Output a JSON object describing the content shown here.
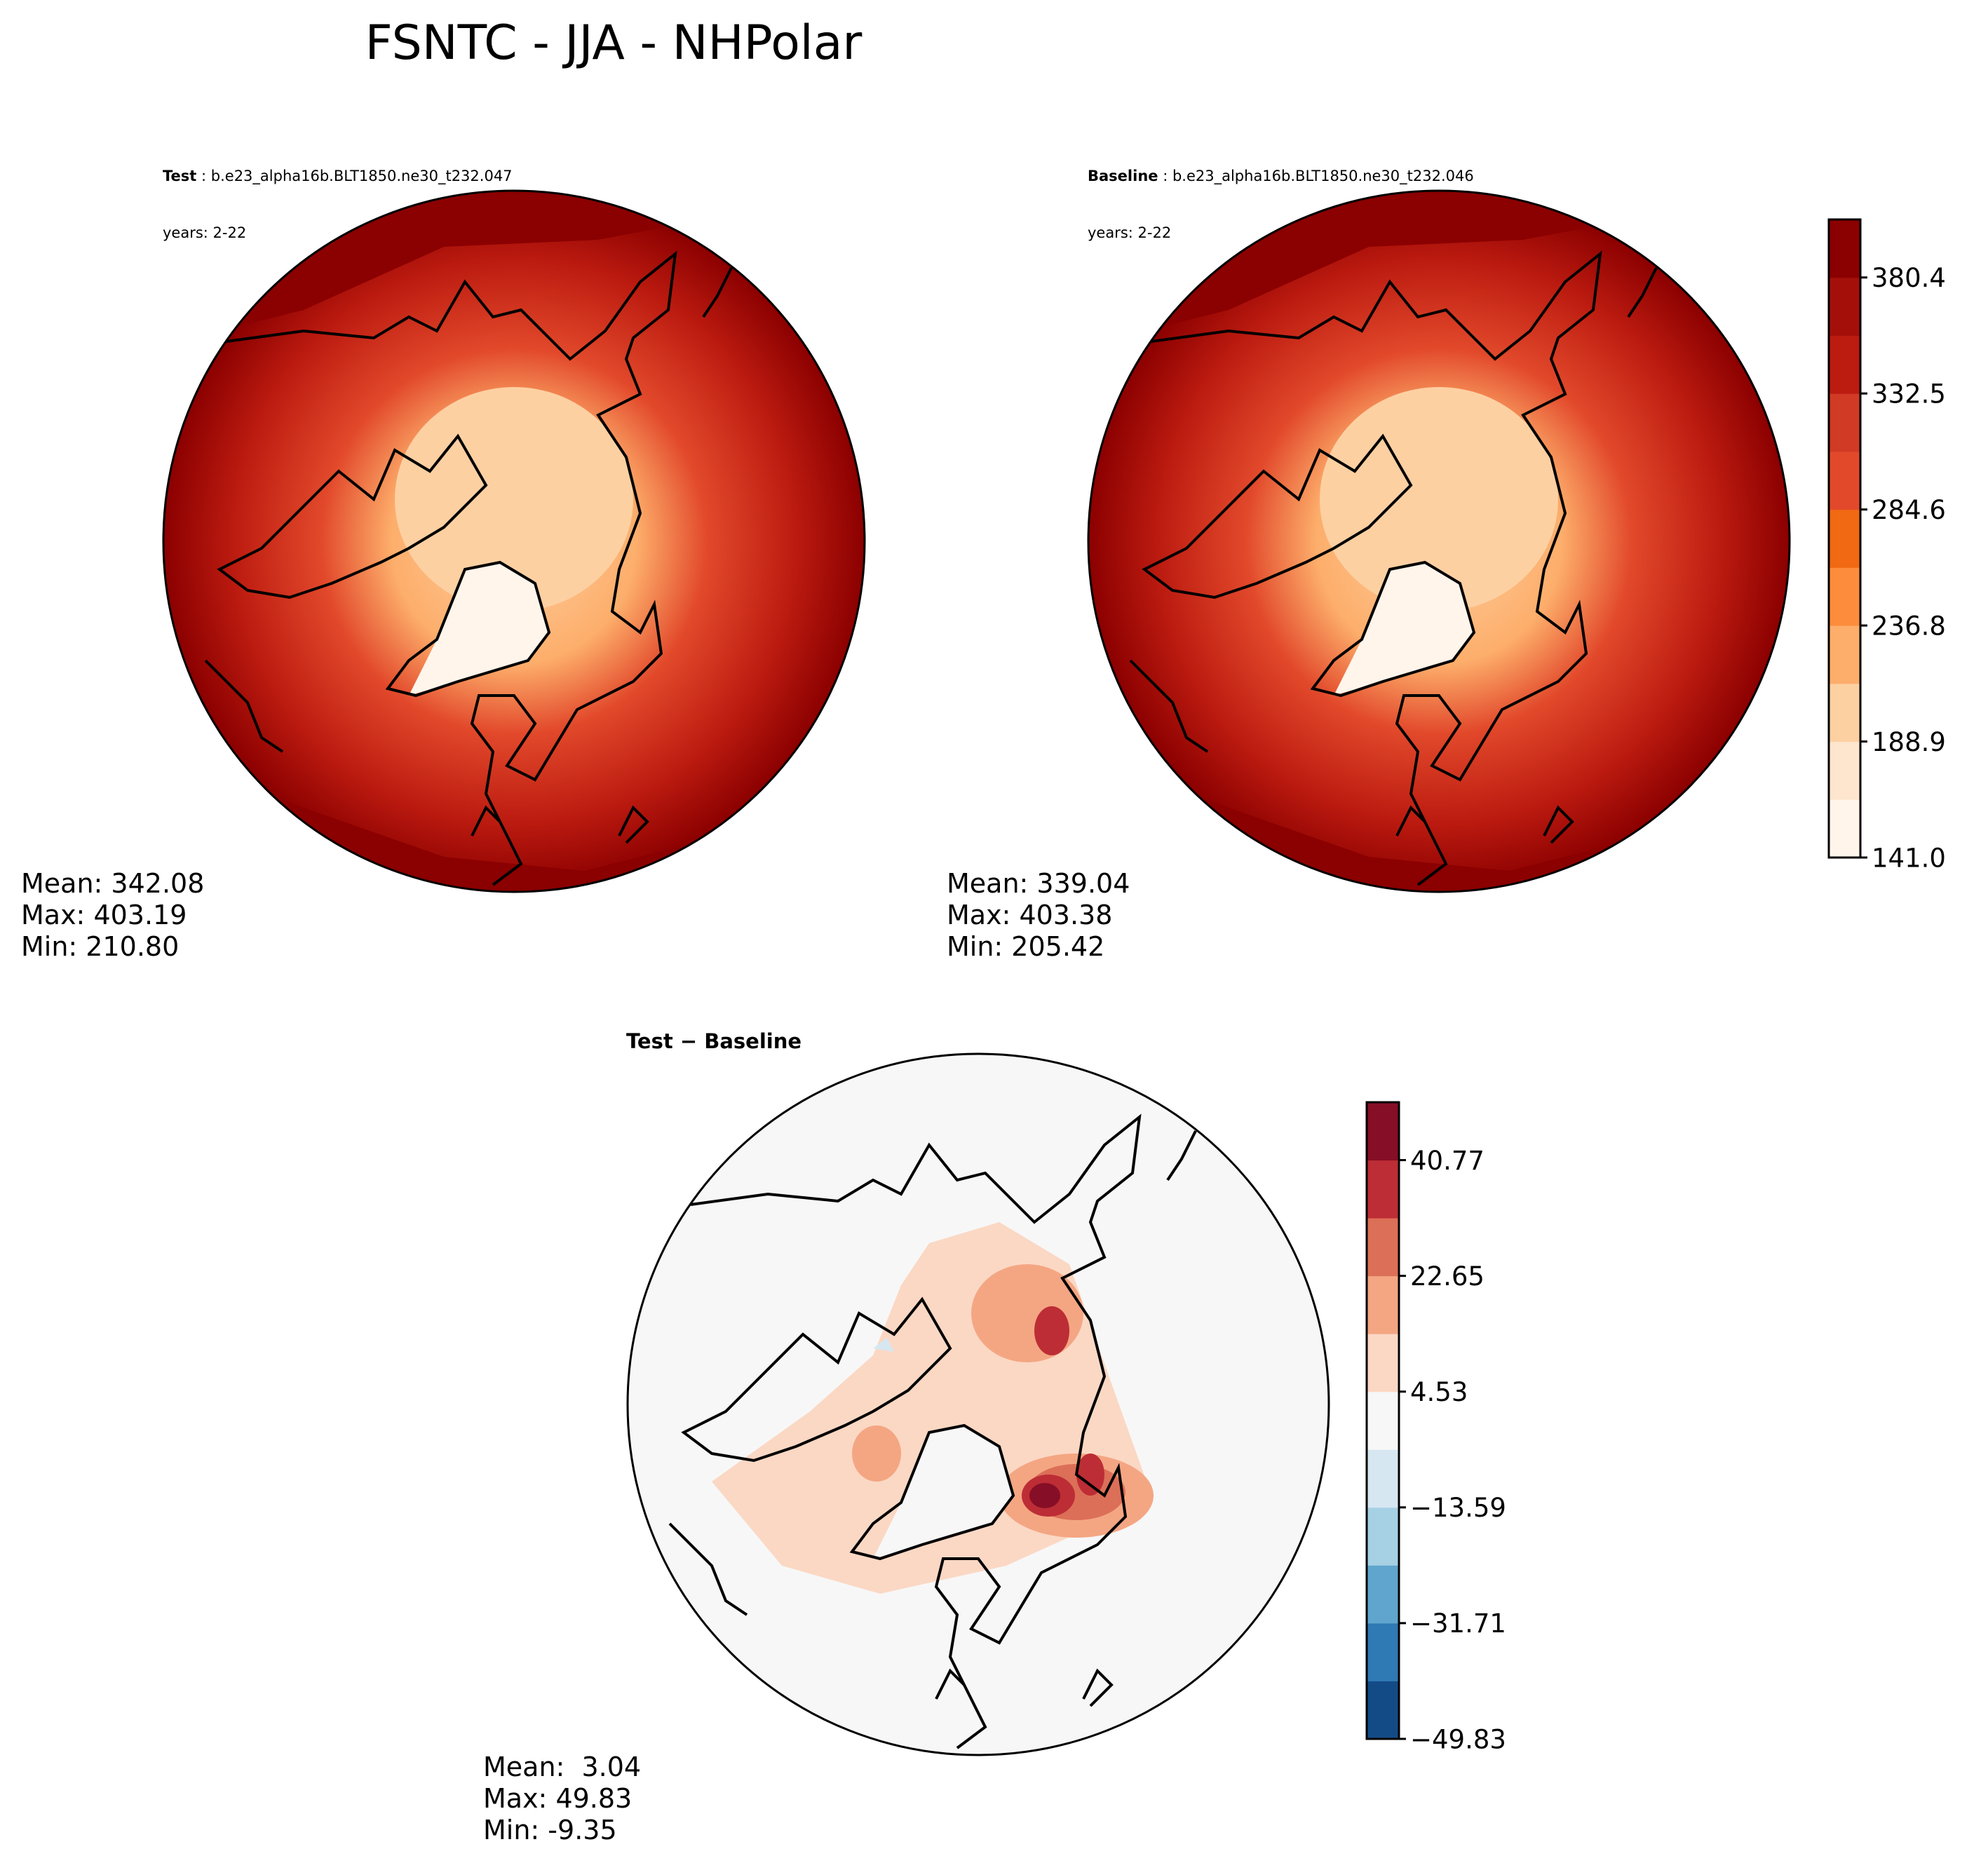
{
  "figure": {
    "title": "FSNTC - JJA - NHPolar"
  },
  "panels": {
    "test": {
      "label": "Test",
      "case": "b.e23_alpha16b.BLT1850.ne30_t232.047",
      "years": "years: 2-22",
      "stats": {
        "mean": "Mean: 342.08",
        "max": "Max: 403.19",
        "min": "Min: 210.80"
      }
    },
    "baseline": {
      "label": "Baseline",
      "case": "b.e23_alpha16b.BLT1850.ne30_t232.046",
      "years": "years: 2-22",
      "stats": {
        "mean": "Mean: 339.04",
        "max": "Max: 403.38",
        "min": "Min: 205.42"
      }
    },
    "diff": {
      "label": "Test − Baseline",
      "stats": {
        "mean": "Mean:  3.04",
        "max": "Max: 49.83",
        "min": "Min: -9.35"
      }
    }
  },
  "colorbars": {
    "main": {
      "tick_labels": [
        "141.0",
        "188.9",
        "236.8",
        "284.6",
        "332.5",
        "380.4"
      ],
      "colors": [
        "#fff5eb",
        "#fee6ce",
        "#fdd0a2",
        "#fdae6b",
        "#fd8d3c",
        "#f16913",
        "#e2492b",
        "#d13a24",
        "#bc1b10",
        "#a50f0a",
        "#8b0000"
      ]
    },
    "diff": {
      "tick_labels": [
        "−49.83",
        "−31.71",
        "−13.59",
        "4.53",
        "22.65",
        "40.77"
      ],
      "colors": [
        "#134b87",
        "#2f79b5",
        "#5fa5cd",
        "#a6d0e4",
        "#d6e7f1",
        "#f7f7f7",
        "#fbd8c4",
        "#f4a683",
        "#dc6f58",
        "#bd2d35",
        "#860e26"
      ]
    }
  },
  "colors": {
    "land_outline": "#000000",
    "map_background_diff": "#f5f5f5"
  }
}
